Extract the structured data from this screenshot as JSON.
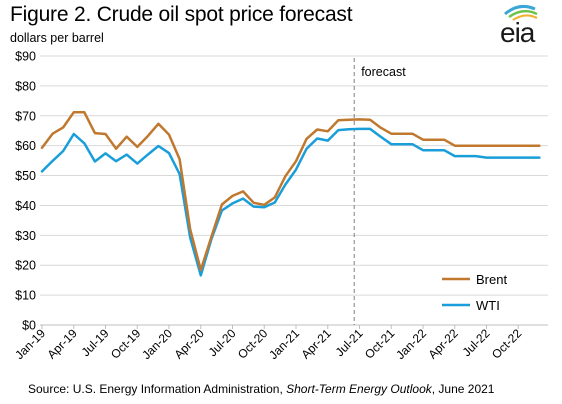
{
  "header": {
    "title": "Figure 2. Crude oil spot price forecast",
    "subtitle": "dollars per barrel"
  },
  "logo": {
    "text": "eia",
    "icon": "eia-logo-icon"
  },
  "source": {
    "prefix": "Source: U.S. Energy Information Administration, ",
    "publication": "Short-Term Energy Outlook",
    "suffix": ", June 2021"
  },
  "chart_data": {
    "type": "line",
    "title": "Figure 2. Crude oil spot price forecast",
    "ylabel": "dollars per barrel",
    "xlabel": "",
    "ylim": [
      0,
      90
    ],
    "yticks": [
      0,
      10,
      20,
      30,
      40,
      50,
      60,
      70,
      80,
      90
    ],
    "ytick_labels": [
      "$0",
      "$10",
      "$20",
      "$30",
      "$40",
      "$50",
      "$60",
      "$70",
      "$80",
      "$90"
    ],
    "x": [
      "Jan-19",
      "Feb-19",
      "Mar-19",
      "Apr-19",
      "May-19",
      "Jun-19",
      "Jul-19",
      "Aug-19",
      "Sep-19",
      "Oct-19",
      "Nov-19",
      "Dec-19",
      "Jan-20",
      "Feb-20",
      "Mar-20",
      "Apr-20",
      "May-20",
      "Jun-20",
      "Jul-20",
      "Aug-20",
      "Sep-20",
      "Oct-20",
      "Nov-20",
      "Dec-20",
      "Jan-21",
      "Feb-21",
      "Mar-21",
      "Apr-21",
      "May-21",
      "Jun-21",
      "Jul-21",
      "Aug-21",
      "Sep-21",
      "Oct-21",
      "Nov-21",
      "Dec-21",
      "Jan-22",
      "Feb-22",
      "Mar-22",
      "Apr-22",
      "May-22",
      "Jun-22",
      "Jul-22",
      "Aug-22",
      "Sep-22",
      "Oct-22",
      "Nov-22",
      "Dec-22"
    ],
    "xtick_labels": [
      "Jan-19",
      "Apr-19",
      "Jul-19",
      "Oct-19",
      "Jan-20",
      "Apr-20",
      "Jul-20",
      "Oct-20",
      "Jan-21",
      "Apr-21",
      "Jul-21",
      "Oct-21",
      "Jan-22",
      "Apr-22",
      "Jul-22",
      "Oct-22"
    ],
    "grid": "horizontal",
    "legend_position": "bottom-right",
    "series": [
      {
        "name": "Brent",
        "color": "#c0782f",
        "values": [
          59.3,
          64.0,
          66.1,
          71.2,
          71.2,
          64.2,
          63.9,
          59.0,
          63.0,
          59.6,
          63.2,
          67.3,
          63.7,
          55.5,
          32.0,
          18.4,
          29.4,
          40.3,
          43.2,
          44.7,
          40.9,
          40.2,
          42.7,
          49.8,
          54.8,
          62.3,
          65.4,
          64.8,
          68.5,
          68.7,
          68.8,
          68.7,
          66.0,
          64.0,
          64.0,
          64.0,
          62.0,
          62.0,
          62.0,
          60.0,
          60.0,
          60.0,
          60.0,
          60.0,
          60.0,
          60.0,
          60.0,
          60.0
        ]
      },
      {
        "name": "WTI",
        "color": "#1a9ed9",
        "values": [
          51.4,
          54.9,
          58.2,
          63.9,
          60.8,
          54.7,
          57.4,
          54.8,
          57.0,
          54.0,
          57.0,
          59.9,
          57.5,
          50.5,
          29.2,
          16.6,
          28.6,
          38.3,
          40.7,
          42.3,
          39.6,
          39.4,
          41.0,
          47.0,
          52.0,
          59.0,
          62.4,
          61.7,
          65.2,
          65.5,
          65.6,
          65.6,
          63.0,
          60.5,
          60.5,
          60.5,
          58.5,
          58.5,
          58.5,
          56.5,
          56.5,
          56.5,
          56.0,
          56.0,
          56.0,
          56.0,
          56.0,
          56.0
        ]
      }
    ],
    "annotations": [
      {
        "text": "forecast",
        "x": "Jun-21",
        "style": "dashed vertical line"
      }
    ]
  }
}
